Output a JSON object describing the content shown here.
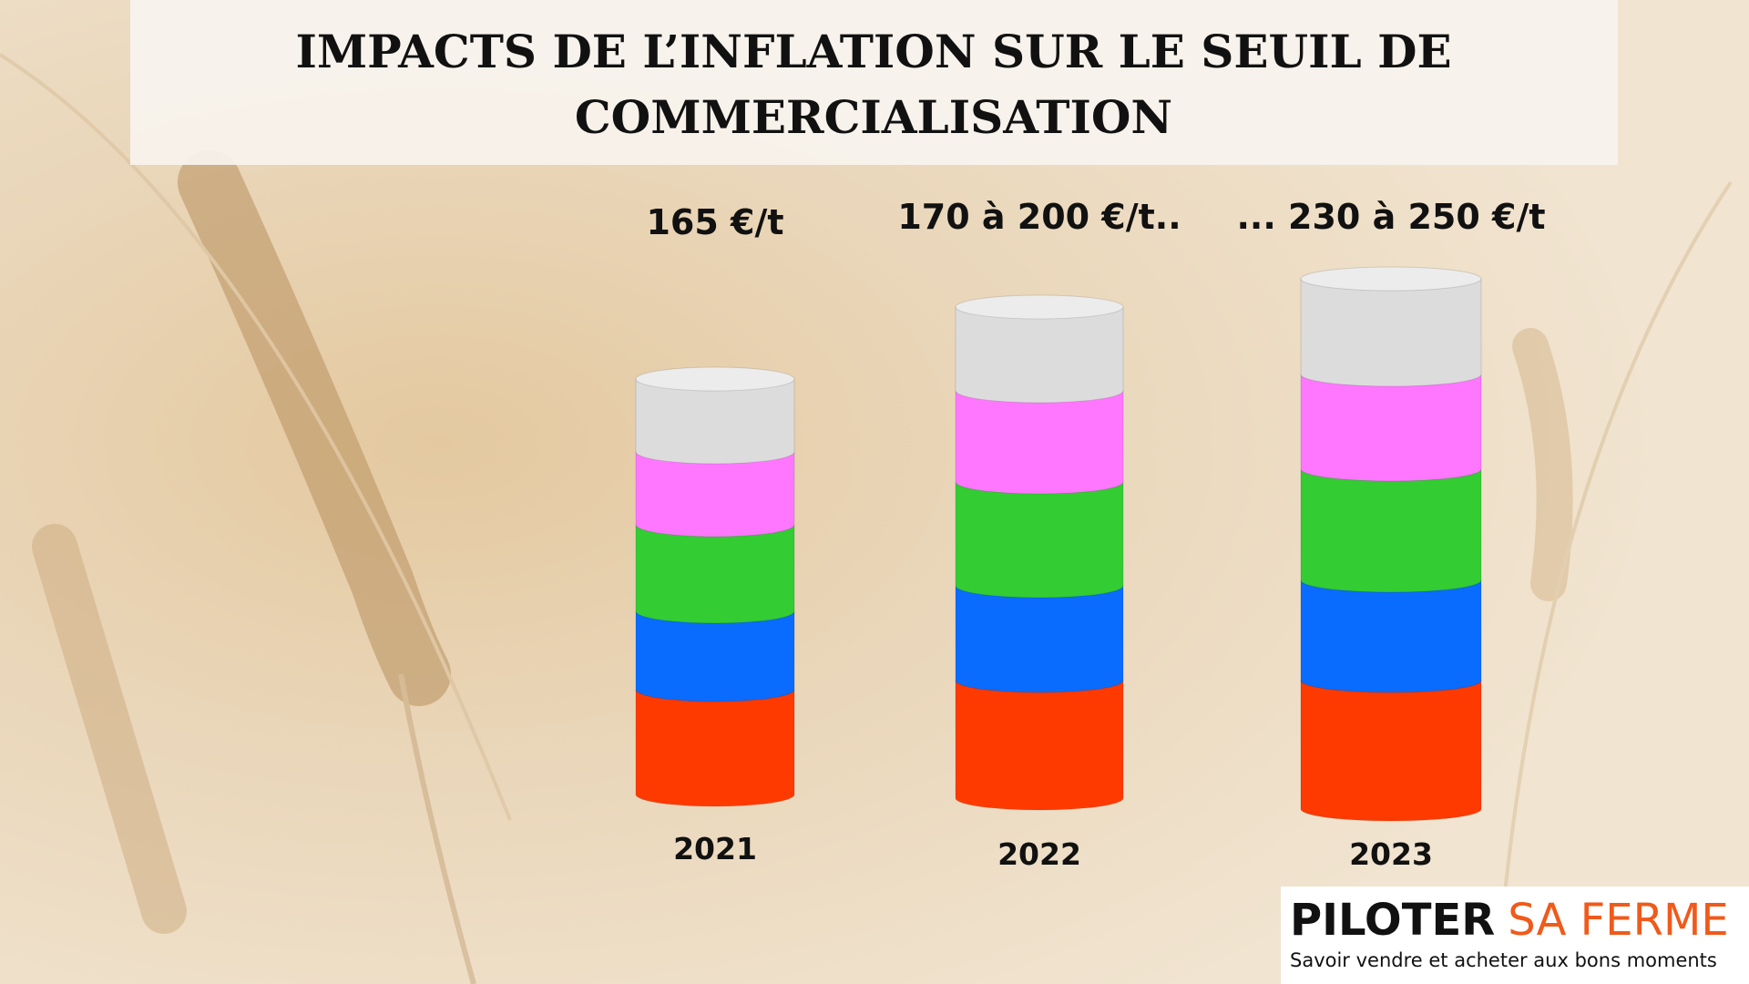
{
  "header": {
    "title_lines": [
      "IMPACTS DE L’INFLATION SUR LE SEUIL DE",
      "COMMERCIALISATION"
    ]
  },
  "columns": [
    {
      "price": "165 €/t",
      "year": "2021"
    },
    {
      "price": "170 à 200 €/t..",
      "year": "2022"
    },
    {
      "price": "... 230 à 250 €/t",
      "year": "2023"
    }
  ],
  "logo": {
    "brand": "PILOTER",
    "brand_accent": "SA FERME",
    "tagline": "Savoir vendre et acheter aux bons moments"
  }
}
